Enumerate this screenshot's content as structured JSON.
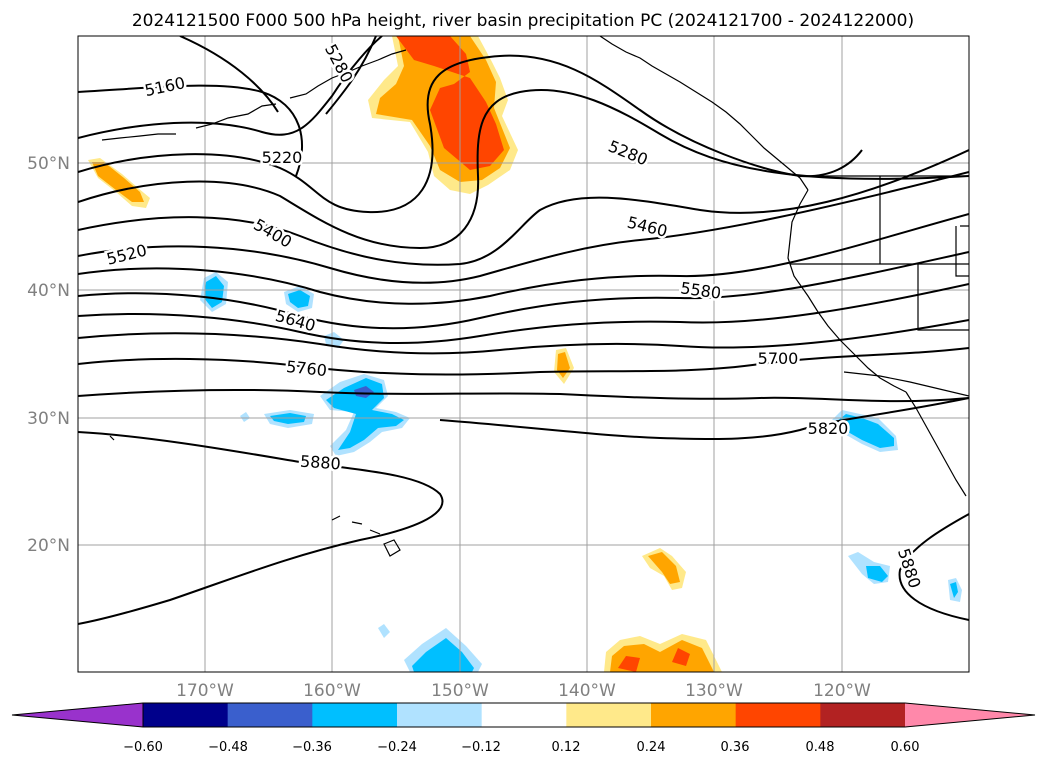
{
  "title": "2024121500 F000 500 hPa height, river basin precipitation PC (2024121700 - 2024122000)",
  "lat_labels": [
    "50°N",
    "40°N",
    "30°N",
    "20°N"
  ],
  "lon_labels": [
    "170°W",
    "160°W",
    "150°W",
    "140°W",
    "130°W",
    "120°W"
  ],
  "contour_labels": [
    "5160",
    "5220",
    "5280",
    "5280",
    "5400",
    "5460",
    "5520",
    "5580",
    "5640",
    "5700",
    "5760",
    "5820",
    "5880",
    "5880"
  ],
  "colorbar": {
    "ticks": [
      "−0.60",
      "−0.48",
      "−0.36",
      "−0.24",
      "−0.12",
      "0.12",
      "0.24",
      "0.36",
      "0.48",
      "0.60"
    ],
    "colors": [
      "#9932cc",
      "#00008b",
      "#3a5fcd",
      "#00bfff",
      "#b0e2ff",
      "#ffffff",
      "#ffe98a",
      "#ffa500",
      "#ff4500",
      "#b22222",
      "#ff88aa"
    ]
  },
  "shading_colors": {
    "pos_light": "#ffe98a",
    "pos_mid": "#ffa500",
    "pos_high": "#ff4500",
    "neg_light": "#b0e2ff",
    "neg_mid": "#00bfff",
    "neg_high": "#3a5fcd"
  }
}
